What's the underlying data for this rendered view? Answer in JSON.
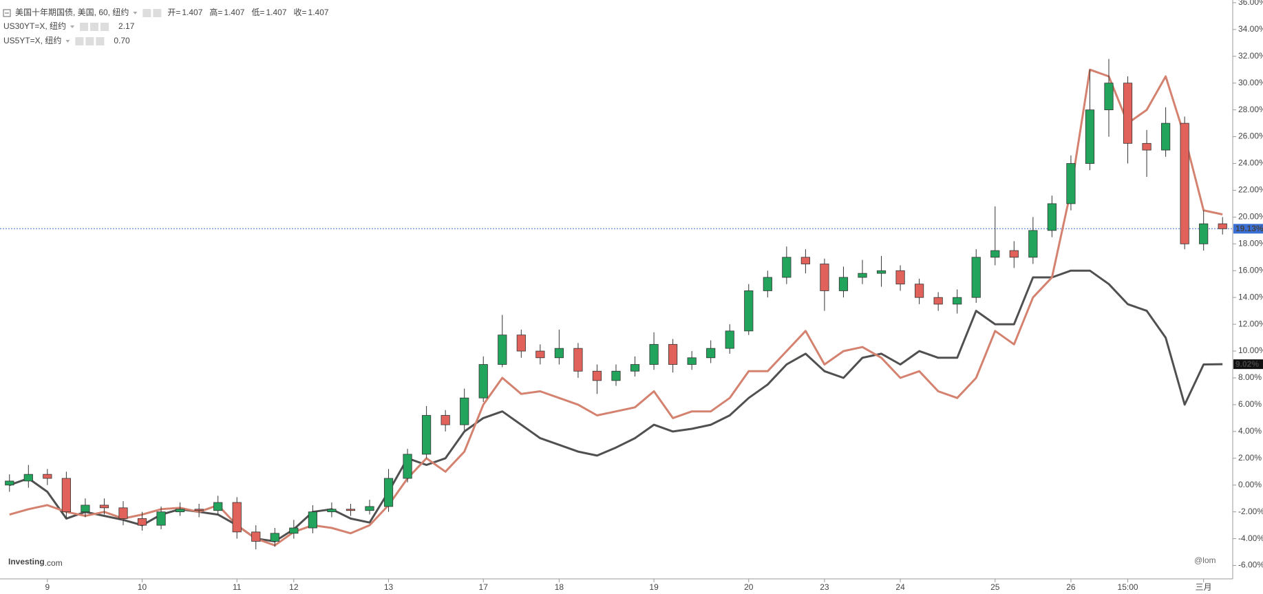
{
  "chart_data": {
    "type": "candlestick",
    "title": "美国十年期国债, 美国, 60, 纽约",
    "ohlc_legend": [
      {
        "label": "开=",
        "value": 1.407
      },
      {
        "label": "高=",
        "value": 1.407
      },
      {
        "label": "低=",
        "value": 1.407
      },
      {
        "label": "收=",
        "value": 1.407
      }
    ],
    "categories": [
      null,
      null,
      "9",
      null,
      null,
      null,
      null,
      "10",
      null,
      null,
      null,
      null,
      "11",
      null,
      null,
      "12",
      null,
      null,
      null,
      null,
      "13",
      null,
      null,
      null,
      null,
      "17",
      null,
      null,
      null,
      "18",
      null,
      null,
      null,
      null,
      "19",
      null,
      null,
      null,
      null,
      "20",
      null,
      null,
      null,
      "23",
      null,
      null,
      null,
      "24",
      null,
      null,
      null,
      null,
      "25",
      null,
      null,
      null,
      "26",
      null,
      null,
      "15:00",
      null,
      null,
      null,
      "三月",
      null
    ],
    "open": [
      0.0,
      0.3,
      0.8,
      0.5,
      -2.0,
      -1.5,
      -1.7,
      -2.5,
      -3.0,
      -2.0,
      -1.8,
      -1.9,
      -1.3,
      -3.5,
      -4.2,
      -3.6,
      -3.2,
      -2.0,
      -1.8,
      -1.9,
      -1.6,
      0.5,
      2.3,
      5.2,
      4.5,
      6.5,
      9.0,
      11.2,
      10.0,
      9.5,
      10.2,
      8.5,
      7.8,
      8.5,
      9.0,
      10.5,
      9.0,
      9.5,
      10.2,
      11.5,
      14.5,
      15.5,
      17.0,
      16.5,
      14.5,
      15.5,
      15.8,
      16.0,
      15.0,
      14.0,
      13.5,
      14.0,
      17.0,
      17.5,
      17.0,
      19.0,
      21.0,
      24.0,
      28.0,
      30.0,
      25.5,
      25.0,
      27.0,
      18.0,
      19.5
    ],
    "high": [
      0.8,
      1.5,
      1.2,
      1.0,
      -1.0,
      -1.0,
      -1.2,
      -2.0,
      -1.6,
      -1.3,
      -1.4,
      -0.8,
      -0.9,
      -3.0,
      -3.2,
      -2.6,
      -1.5,
      -1.3,
      -1.4,
      -1.1,
      1.2,
      2.7,
      5.9,
      5.6,
      7.2,
      9.6,
      12.7,
      11.6,
      10.5,
      11.6,
      10.6,
      9.0,
      9.0,
      9.6,
      11.4,
      10.9,
      10.0,
      10.8,
      12.0,
      15.0,
      16.0,
      17.8,
      17.6,
      16.9,
      16.3,
      16.8,
      17.1,
      16.4,
      15.4,
      14.4,
      14.6,
      17.6,
      20.8,
      18.2,
      20.0,
      21.6,
      24.6,
      31.0,
      31.8,
      30.5,
      26.5,
      28.2,
      27.5,
      20.5,
      20.0
    ],
    "low": [
      -0.5,
      -0.2,
      0.0,
      -2.5,
      -2.4,
      -2.2,
      -3.0,
      -3.4,
      -3.3,
      -2.3,
      -2.4,
      -2.2,
      -4.0,
      -4.8,
      -4.6,
      -4.0,
      -3.6,
      -2.4,
      -2.3,
      -2.2,
      -2.0,
      0.2,
      2.0,
      4.0,
      4.1,
      6.2,
      8.8,
      9.5,
      9.0,
      9.0,
      8.0,
      6.8,
      7.4,
      8.1,
      8.6,
      8.4,
      8.6,
      9.1,
      9.8,
      11.2,
      14.0,
      15.0,
      15.8,
      13.0,
      14.0,
      15.0,
      14.8,
      14.5,
      13.5,
      13.0,
      12.8,
      13.6,
      16.4,
      16.2,
      16.5,
      18.5,
      20.5,
      23.5,
      26.0,
      24.0,
      23.0,
      24.5,
      17.6,
      17.5,
      18.7
    ],
    "close": [
      0.3,
      0.8,
      0.5,
      -2.0,
      -1.5,
      -1.7,
      -2.5,
      -3.0,
      -2.0,
      -1.8,
      -1.9,
      -1.3,
      -3.5,
      -4.2,
      -3.6,
      -3.2,
      -2.0,
      -1.8,
      -1.9,
      -1.6,
      0.5,
      2.3,
      5.2,
      4.5,
      6.5,
      9.0,
      11.2,
      10.0,
      9.5,
      10.2,
      8.5,
      7.8,
      8.5,
      9.0,
      10.5,
      9.0,
      9.5,
      10.2,
      11.5,
      14.5,
      15.5,
      17.0,
      16.5,
      14.5,
      15.5,
      15.8,
      16.0,
      15.0,
      14.0,
      13.5,
      14.0,
      17.0,
      17.5,
      17.0,
      19.0,
      21.0,
      24.0,
      28.0,
      30.0,
      25.5,
      25.0,
      27.0,
      18.0,
      19.5,
      19.13
    ],
    "up_color": "#22a45d",
    "down_color": "#e0625a",
    "series": [
      {
        "name": "US30YT=X, 纽约",
        "color": "#505050",
        "legend_value": 2.17,
        "legend_value_label": "2.17",
        "values": [
          0,
          0.5,
          -0.5,
          -2.5,
          -2.0,
          -2.3,
          -2.6,
          -3.0,
          -2.2,
          -1.8,
          -2.0,
          -2.2,
          -3.0,
          -4.0,
          -4.2,
          -3.3,
          -2.0,
          -1.8,
          -2.5,
          -2.8,
          -0.5,
          2.0,
          1.5,
          2.0,
          4.0,
          5.0,
          5.5,
          4.5,
          3.5,
          3.0,
          2.5,
          2.2,
          2.8,
          3.5,
          4.5,
          4.0,
          4.2,
          4.5,
          5.2,
          6.5,
          7.5,
          9.0,
          9.8,
          8.5,
          8.0,
          9.5,
          9.8,
          9.0,
          10.0,
          9.5,
          9.5,
          13.0,
          12.0,
          12.0,
          15.5,
          15.5,
          16.0,
          16.0,
          15.0,
          13.5,
          13.0,
          11.0,
          6.0,
          9.0,
          9.02
        ]
      },
      {
        "name": "US5YT=X, 纽约",
        "color": "#d4826f",
        "legend_value": 0.7,
        "legend_value_label": "0.70",
        "values": [
          -2.2,
          -1.8,
          -1.5,
          -2.0,
          -2.3,
          -2.0,
          -2.5,
          -2.2,
          -1.8,
          -1.7,
          -2.0,
          -1.5,
          -3.0,
          -4.0,
          -4.5,
          -3.5,
          -3.0,
          -3.2,
          -3.6,
          -3.0,
          -1.5,
          0.5,
          2.0,
          1.0,
          2.5,
          6.0,
          8.0,
          6.8,
          7.0,
          6.5,
          6.0,
          5.2,
          5.5,
          5.8,
          7.0,
          5.0,
          5.5,
          5.5,
          6.5,
          8.5,
          8.5,
          10.0,
          11.5,
          9.0,
          10.0,
          10.3,
          9.5,
          8.0,
          8.5,
          7.0,
          6.5,
          8.0,
          11.5,
          10.5,
          14.0,
          15.5,
          22.0,
          31.0,
          30.5,
          27.0,
          28.0,
          30.5,
          26.0,
          20.5,
          20.2
        ]
      }
    ],
    "ylim": [
      -7,
      36.2
    ],
    "yticks": [
      {
        "value": -6,
        "label": "-6.00%"
      },
      {
        "value": -4,
        "label": "-4.00%"
      },
      {
        "value": -2,
        "label": "-2.00%"
      },
      {
        "value": 0,
        "label": "0.00%"
      },
      {
        "value": 2,
        "label": "2.00%"
      },
      {
        "value": 4,
        "label": "4.00%"
      },
      {
        "value": 6,
        "label": "6.00%"
      },
      {
        "value": 8,
        "label": "8.00%"
      },
      {
        "value": 10,
        "label": "10.00%"
      },
      {
        "value": 12,
        "label": "12.00%"
      },
      {
        "value": 14,
        "label": "14.00%"
      },
      {
        "value": 16,
        "label": "16.00%"
      },
      {
        "value": 18,
        "label": "18.00%"
      },
      {
        "value": 20,
        "label": "20.00%"
      },
      {
        "value": 22,
        "label": "22.00%"
      },
      {
        "value": 24,
        "label": "24.00%"
      },
      {
        "value": 26,
        "label": "26.00%"
      },
      {
        "value": 28,
        "label": "28.00%"
      },
      {
        "value": 30,
        "label": "30.00%"
      },
      {
        "value": 32,
        "label": "32.00%"
      },
      {
        "value": 34,
        "label": "34.00%"
      },
      {
        "value": 36,
        "label": "36.00%"
      }
    ],
    "price_tags": [
      {
        "value": 19.13,
        "label": "19.13%",
        "color": "#3a6fd6",
        "line": true
      },
      {
        "value": 9.02,
        "label": "9.02%",
        "color": "#111111",
        "line": false
      }
    ],
    "watermarks": [
      "Investing",
      ".com",
      "@lom"
    ]
  }
}
